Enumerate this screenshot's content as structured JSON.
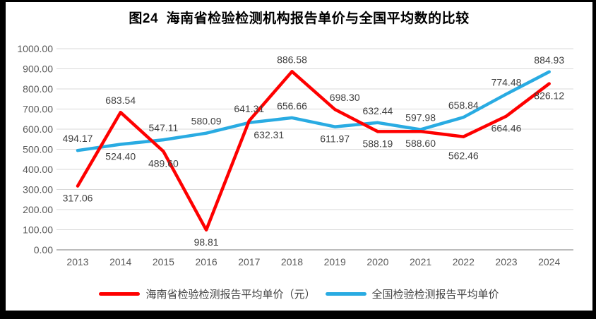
{
  "title": "图24  海南省检验检测机构报告单价与全国平均数的比较",
  "colors": {
    "hainan_series": "#FE0000",
    "national_series": "#29ABE2",
    "gridline": "#D9D9D9",
    "axis_line": "#A6A6A6",
    "tick_text": "#595959",
    "data_label_text": "#404040",
    "frame_border": "#000000",
    "chart_background": "#FFFFFF"
  },
  "chart_data": {
    "type": "line",
    "categories": [
      "2013",
      "2014",
      "2015",
      "2016",
      "2017",
      "2018",
      "2019",
      "2020",
      "2021",
      "2022",
      "2023",
      "2024"
    ],
    "series": [
      {
        "name": "海南省检验检测报告平均单价（元）",
        "color": "#FE0000",
        "values": [
          317.06,
          683.54,
          489.6,
          98.81,
          641.31,
          886.58,
          698.3,
          588.19,
          588.6,
          562.46,
          664.46,
          826.12
        ]
      },
      {
        "name": "全国检验检测报告平均单价",
        "color": "#29ABE2",
        "values": [
          494.17,
          524.4,
          547.11,
          580.09,
          632.31,
          656.66,
          611.97,
          632.44,
          597.98,
          658.84,
          774.48,
          884.93
        ]
      }
    ],
    "ylim": [
      0,
      1000
    ],
    "ytick_step": 100,
    "ytick_labels": [
      "0.00",
      "100.00",
      "200.00",
      "300.00",
      "400.00",
      "500.00",
      "600.00",
      "700.00",
      "800.00",
      "900.00",
      "1000.00"
    ],
    "grid": true,
    "data_labels": true,
    "label_format": "0.00",
    "legend_position": "bottom"
  }
}
